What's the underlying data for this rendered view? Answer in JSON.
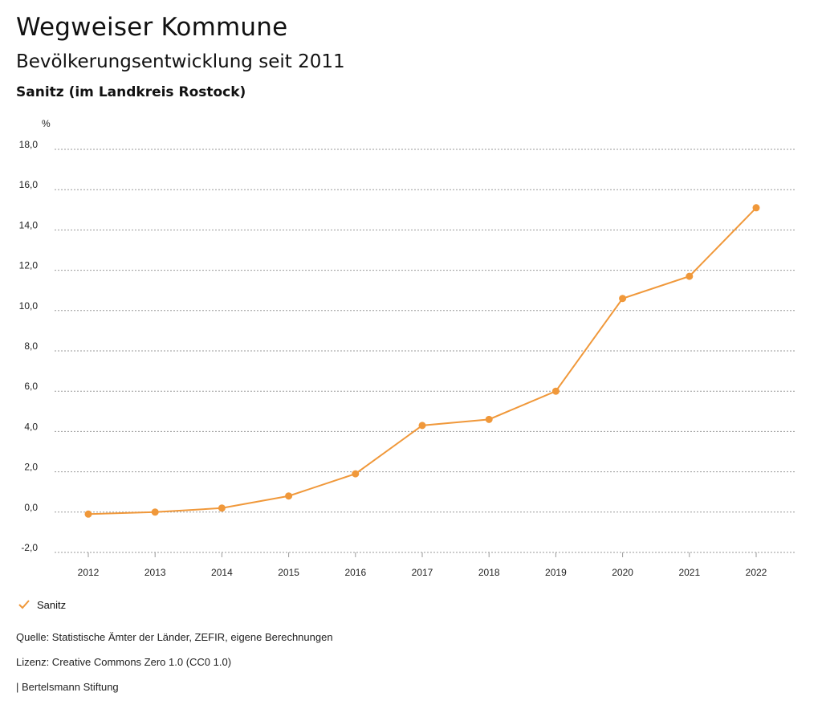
{
  "header": {
    "title": "Wegweiser Kommune",
    "subtitle": "Bevölkerungsentwicklung seit 2011",
    "place": "Sanitz (im Landkreis Rostock)"
  },
  "chart_data": {
    "type": "line",
    "ylabel": "%",
    "ylim": [
      -2.0,
      18.0
    ],
    "yticks": [
      "18,0",
      "16,0",
      "14,0",
      "12,0",
      "10,0",
      "8,0",
      "6,0",
      "4,0",
      "2,0",
      "0,0",
      "-2,0"
    ],
    "ytick_values": [
      18,
      16,
      14,
      12,
      10,
      8,
      6,
      4,
      2,
      0,
      -2
    ],
    "x": [
      "2012",
      "2013",
      "2014",
      "2015",
      "2016",
      "2017",
      "2018",
      "2019",
      "2020",
      "2021",
      "2022"
    ],
    "series": [
      {
        "name": "Sanitz",
        "color": "#f0983a",
        "values": [
          -0.1,
          0.0,
          0.2,
          0.8,
          1.9,
          4.3,
          4.6,
          6.0,
          10.6,
          11.7,
          15.1
        ]
      }
    ],
    "grid": true,
    "legend_position": "bottom-left"
  },
  "legend": {
    "label": "Sanitz",
    "icon": "check-icon"
  },
  "footer": {
    "source": "Quelle: Statistische Ämter der Länder, ZEFIR, eigene Berechnungen",
    "license": "Lizenz: Creative Commons Zero 1.0 (CC0 1.0)",
    "publisher": "| Bertelsmann Stiftung"
  }
}
